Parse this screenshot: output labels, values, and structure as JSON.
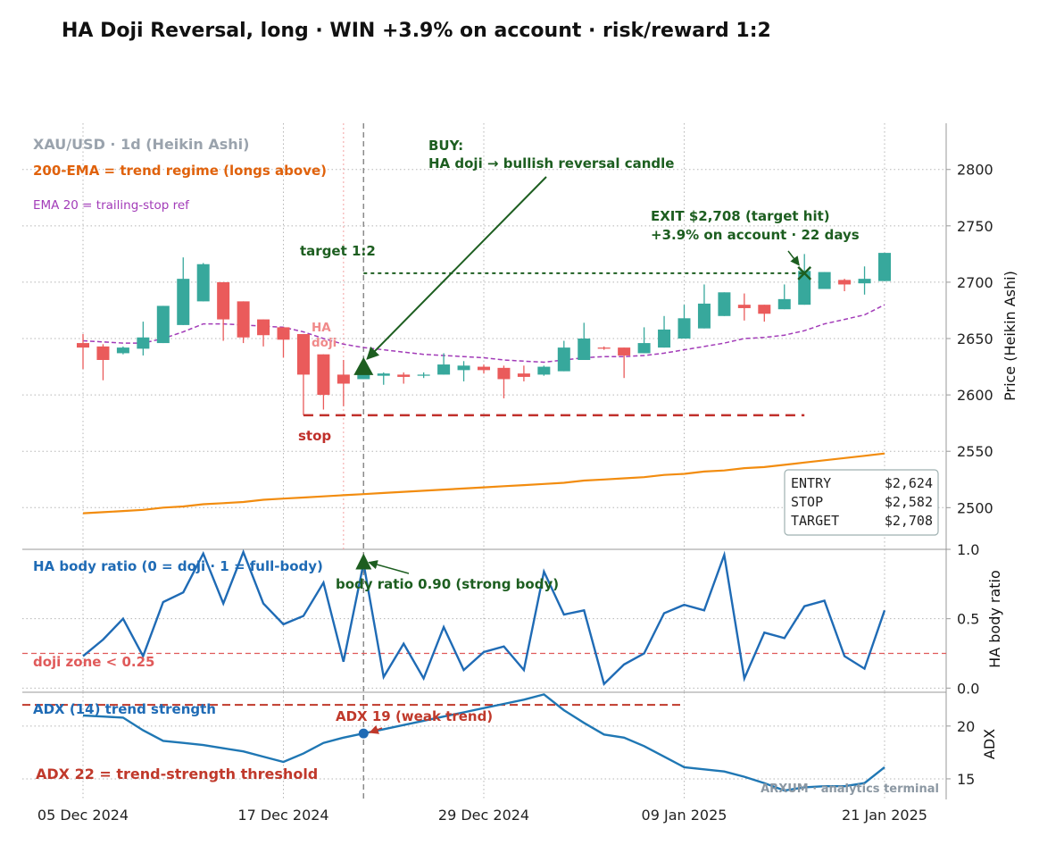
{
  "chart_data": [
    {
      "type": "candlestick",
      "title": "HA Doji Reversal, long · WIN +3.9% on account · risk/reward 1:2",
      "label": "XAU/USD · 1d (Heikin Ashi)",
      "ylabel": "Price (Heikin Ashi)",
      "ylim": [
        2463,
        2841
      ],
      "yticks": [
        2500,
        2550,
        2600,
        2650,
        2700,
        2750,
        2800
      ],
      "grid": true,
      "up_color": "#37a89c",
      "down_color": "#ea5b5b",
      "open": [
        2646,
        2643,
        2637,
        2641,
        2646,
        2662,
        2683,
        2700,
        2683,
        2667,
        2660,
        2654,
        2636,
        2618,
        2614,
        2617,
        2618,
        2617,
        2618,
        2622,
        2625,
        2624,
        2619,
        2618,
        2621,
        2631,
        2642,
        2642,
        2637,
        2642,
        2650,
        2659,
        2670,
        2680,
        2680,
        2676,
        2680,
        2694,
        2702,
        2699,
        2701
      ],
      "high": [
        2654,
        2645,
        2643,
        2665,
        2679,
        2722,
        2717,
        2700,
        2683,
        2667,
        2660,
        2654,
        2636,
        2631,
        2632,
        2620,
        2620,
        2620,
        2637,
        2630,
        2627,
        2626,
        2626,
        2626,
        2648,
        2664,
        2643,
        2642,
        2660,
        2670,
        2680,
        2698,
        2691,
        2690,
        2680,
        2698,
        2725,
        2709,
        2703,
        2714,
        2726
      ],
      "low": [
        2623,
        2613,
        2636,
        2635,
        2646,
        2662,
        2683,
        2648,
        2646,
        2643,
        2633,
        2582,
        2587,
        2590,
        2614,
        2609,
        2610,
        2615,
        2618,
        2612,
        2619,
        2597,
        2612,
        2617,
        2621,
        2631,
        2640,
        2615,
        2637,
        2642,
        2650,
        2659,
        2670,
        2666,
        2665,
        2676,
        2680,
        2694,
        2692,
        2689,
        2701
      ],
      "close": [
        2642,
        2631,
        2642,
        2651,
        2679,
        2703,
        2716,
        2667,
        2651,
        2653,
        2649,
        2618,
        2600,
        2610,
        2619,
        2619,
        2616,
        2618,
        2627,
        2626,
        2622,
        2614,
        2616,
        2625,
        2642,
        2650,
        2641,
        2635,
        2646,
        2658,
        2668,
        2681,
        2691,
        2677,
        2672,
        2685,
        2710,
        2709,
        2698,
        2703,
        2726
      ],
      "series": [
        {
          "name": "200-EMA = trend regime (longs above)",
          "color": "#f28c0f",
          "values": [
            2495,
            2496,
            2497,
            2498,
            2500,
            2501,
            2503,
            2504,
            2505,
            2507,
            2508,
            2509,
            2510,
            2511,
            2512,
            2513,
            2514,
            2515,
            2516,
            2517,
            2518,
            2519,
            2520,
            2521,
            2522,
            2524,
            2525,
            2526,
            2527,
            2529,
            2530,
            2532,
            2533,
            2535,
            2536,
            2538,
            2540,
            2542,
            2544,
            2546,
            2548
          ]
        },
        {
          "name": "EMA 20 = trailing-stop ref",
          "color": "#a23bb8",
          "values": [
            2648,
            2647,
            2646,
            2646,
            2650,
            2656,
            2663,
            2663,
            2662,
            2661,
            2660,
            2656,
            2650,
            2645,
            2642,
            2640,
            2638,
            2636,
            2635,
            2634,
            2633,
            2631,
            2630,
            2629,
            2631,
            2633,
            2634,
            2634,
            2635,
            2637,
            2640,
            2643,
            2646,
            2650,
            2651,
            2653,
            2657,
            2663,
            2667,
            2671,
            2680
          ]
        }
      ],
      "levels": [
        {
          "name": "ENTRY",
          "value": 2624,
          "label": "$2,624"
        },
        {
          "name": "STOP",
          "value": 2582,
          "label": "$2,582"
        },
        {
          "name": "TARGET",
          "value": 2708,
          "label": "$2,708"
        }
      ],
      "annotations": [
        "BUY:",
        "HA doji → bullish reversal candle",
        "EXIT $2,708 (target hit)",
        "+3.9% on account  ·  22 days",
        "target 1:2",
        "stop",
        "HA",
        "doji"
      ]
    },
    {
      "type": "line",
      "title": "HA body ratio (0 = doji · 1 = full-body)",
      "ylabel": "HA body ratio",
      "ylim": [
        -0.03,
        1.0
      ],
      "yticks": [
        {
          "value": 0,
          "label": "0.0"
        },
        {
          "value": 0.5,
          "label": "0.5"
        },
        {
          "value": 1,
          "label": "1.0"
        }
      ],
      "grid": true,
      "color": "#1f6bb5",
      "values": [
        0.23,
        0.35,
        0.5,
        0.23,
        0.62,
        0.69,
        0.97,
        0.61,
        0.98,
        0.61,
        0.46,
        0.52,
        0.76,
        0.19,
        0.9,
        0.08,
        0.32,
        0.07,
        0.44,
        0.13,
        0.26,
        0.3,
        0.13,
        0.84,
        0.53,
        0.56,
        0.03,
        0.17,
        0.25,
        0.54,
        0.6,
        0.56,
        0.96,
        0.07,
        0.4,
        0.36,
        0.59,
        0.63,
        0.23,
        0.14,
        0.56
      ],
      "threshold": {
        "value": 0.25,
        "label": "doji zone < 0.25",
        "color": "#e05a5a"
      },
      "annotations": [
        "body ratio 0.90 (strong body)"
      ]
    },
    {
      "type": "line",
      "title": "ADX (14) trend strength",
      "ylabel": "ADX",
      "ylim": [
        13.05,
        23.2
      ],
      "yticks": [
        15,
        20
      ],
      "grid": true,
      "color": "#1f77b4",
      "values": [
        21.0,
        20.9,
        20.8,
        19.6,
        18.6,
        18.4,
        18.2,
        17.9,
        17.6,
        17.1,
        16.6,
        17.4,
        18.4,
        18.9,
        19.3,
        19.7,
        20.1,
        20.5,
        20.9,
        21.3,
        21.7,
        22.1,
        22.5,
        23.0,
        21.5,
        20.3,
        19.2,
        18.9,
        18.1,
        17.1,
        16.1,
        15.9,
        15.7,
        15.2,
        14.6,
        13.9,
        14.2,
        14.3,
        14.3,
        14.6,
        16.1
      ],
      "threshold": {
        "value": 22,
        "label": "ADX 22 = trend-strength threshold",
        "color": "#c0392b"
      },
      "annotations": [
        "ADX 19 (weak trend)"
      ],
      "watermark": "ARXUM · analytics terminal",
      "categories": [
        "05 Dec 2024",
        null,
        null,
        null,
        null,
        null,
        null,
        null,
        null,
        null,
        "17 Dec 2024",
        null,
        null,
        null,
        null,
        null,
        null,
        null,
        null,
        null,
        "29 Dec 2024",
        null,
        null,
        null,
        null,
        null,
        null,
        null,
        null,
        null,
        "09 Jan 2025",
        null,
        null,
        null,
        null,
        null,
        null,
        null,
        null,
        null,
        "21 Jan 2025"
      ]
    }
  ]
}
